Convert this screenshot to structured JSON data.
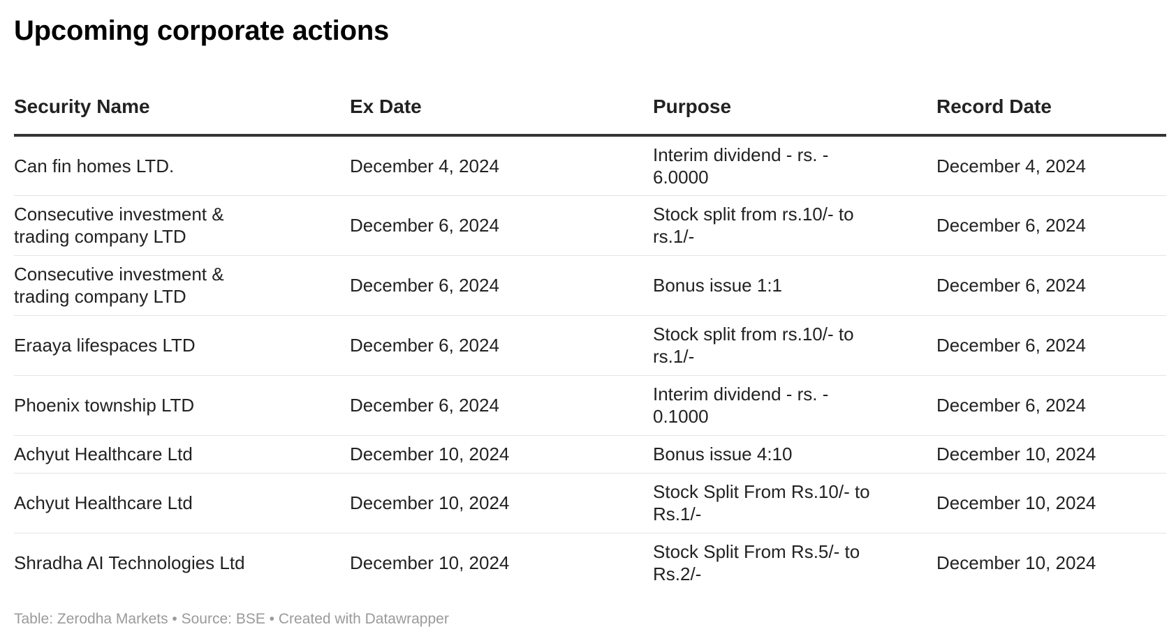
{
  "title": "Upcoming corporate actions",
  "table": {
    "headers": {
      "security_name": "Security Name",
      "ex_date": "Ex Date",
      "purpose": "Purpose",
      "record_date": "Record Date"
    },
    "rows": [
      {
        "security_name": "Can fin homes LTD.",
        "ex_date": "December 4, 2024",
        "purpose": "Interim dividend - rs. - 6.0000",
        "record_date": "December 4, 2024"
      },
      {
        "security_name": "Consecutive investment & trading company LTD",
        "ex_date": "December 6, 2024",
        "purpose": "Stock split from rs.10/- to rs.1/-",
        "record_date": "December 6, 2024"
      },
      {
        "security_name": "Consecutive investment & trading company LTD",
        "ex_date": "December 6, 2024",
        "purpose": "Bonus issue 1:1",
        "record_date": "December 6, 2024"
      },
      {
        "security_name": "Eraaya lifespaces LTD",
        "ex_date": "December 6, 2024",
        "purpose": "Stock split from rs.10/- to rs.1/-",
        "record_date": "December 6, 2024"
      },
      {
        "security_name": "Phoenix township LTD",
        "ex_date": "December 6, 2024",
        "purpose": "Interim dividend - rs. - 0.1000",
        "record_date": "December 6, 2024"
      },
      {
        "security_name": "Achyut Healthcare Ltd",
        "ex_date": "December 10, 2024",
        "purpose": "Bonus issue 4:10",
        "record_date": "December 10, 2024"
      },
      {
        "security_name": "Achyut Healthcare Ltd",
        "ex_date": "December 10, 2024",
        "purpose": "Stock Split From Rs.10/- to Rs.1/-",
        "record_date": "December 10, 2024"
      },
      {
        "security_name": "Shradha AI Technologies Ltd",
        "ex_date": "December 10, 2024",
        "purpose": "Stock Split From Rs.5/- to Rs.2/-",
        "record_date": "December 10, 2024"
      }
    ]
  },
  "footer": "Table: Zerodha Markets • Source: BSE • Created with Datawrapper"
}
